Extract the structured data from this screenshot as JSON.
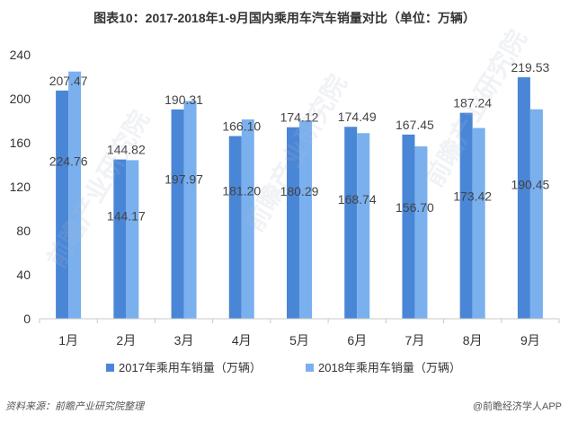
{
  "title": "图表10：2017-2018年1-9月国内乘用车汽车销量对比（单位：万辆）",
  "source": "资料来源：前瞻产业研究院整理",
  "brand": "@前瞻经济学人APP",
  "watermark": "前瞻产业研究院",
  "colors": {
    "s2017": "#4a86d6",
    "s2018": "#7ab0ee",
    "axis": "#c8c8c8",
    "text": "#333333",
    "label": "#444444"
  },
  "chart_data": {
    "type": "bar",
    "title": "图表10：2017-2018年1-9月国内乘用车汽车销量对比（单位：万辆）",
    "xlabel": "",
    "ylabel": "",
    "ylim": [
      0,
      240
    ],
    "yticks": [
      0,
      40,
      80,
      120,
      160,
      200,
      240
    ],
    "categories": [
      "1月",
      "2月",
      "3月",
      "4月",
      "5月",
      "6月",
      "7月",
      "8月",
      "9月"
    ],
    "series": [
      {
        "name": "2017年乘用车销量（万辆）",
        "values": [
          207.47,
          144.82,
          190.31,
          166.1,
          174.12,
          174.49,
          167.45,
          187.24,
          219.53
        ]
      },
      {
        "name": "2018年乘用车销量（万辆）",
        "values": [
          224.76,
          144.17,
          197.97,
          181.2,
          180.29,
          168.74,
          156.7,
          173.42,
          190.45
        ]
      }
    ],
    "legend": "bottom",
    "grid": false
  }
}
